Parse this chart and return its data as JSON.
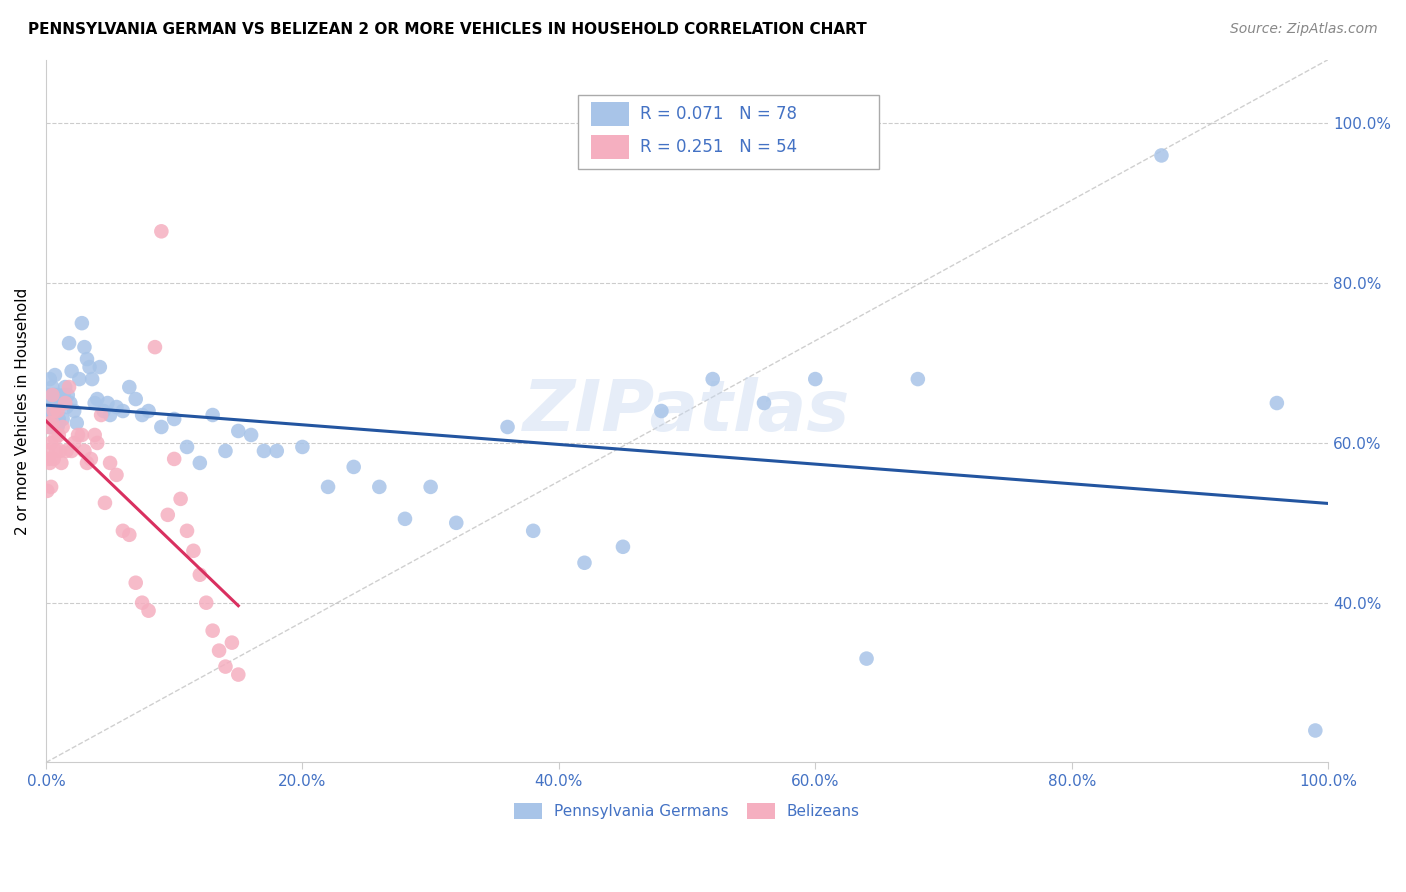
{
  "title": "PENNSYLVANIA GERMAN VS BELIZEAN 2 OR MORE VEHICLES IN HOUSEHOLD CORRELATION CHART",
  "source": "Source: ZipAtlas.com",
  "ylabel": "2 or more Vehicles in Household",
  "xlim": [
    0,
    1.0
  ],
  "ylim": [
    0.2,
    1.08
  ],
  "xtick_labels": [
    "0.0%",
    "20.0%",
    "40.0%",
    "60.0%",
    "80.0%",
    "100.0%"
  ],
  "xtick_vals": [
    0.0,
    0.2,
    0.4,
    0.6,
    0.8,
    1.0
  ],
  "ytick_labels": [
    "40.0%",
    "60.0%",
    "80.0%",
    "100.0%"
  ],
  "ytick_vals": [
    0.4,
    0.6,
    0.8,
    1.0
  ],
  "legend1_r": "0.071",
  "legend1_n": "78",
  "legend2_r": "0.251",
  "legend2_n": "54",
  "blue_color": "#a8c4e8",
  "pink_color": "#f5afc0",
  "line_blue": "#2355a0",
  "line_pink": "#d93060",
  "watermark": "ZIPatlas",
  "pa_german_x": [
    0.001,
    0.002,
    0.002,
    0.003,
    0.003,
    0.004,
    0.004,
    0.005,
    0.005,
    0.006,
    0.006,
    0.007,
    0.007,
    0.008,
    0.009,
    0.009,
    0.01,
    0.01,
    0.011,
    0.012,
    0.013,
    0.014,
    0.015,
    0.016,
    0.017,
    0.018,
    0.019,
    0.02,
    0.022,
    0.024,
    0.026,
    0.028,
    0.03,
    0.032,
    0.034,
    0.036,
    0.038,
    0.04,
    0.042,
    0.045,
    0.048,
    0.05,
    0.055,
    0.06,
    0.065,
    0.07,
    0.075,
    0.08,
    0.09,
    0.1,
    0.11,
    0.12,
    0.13,
    0.14,
    0.15,
    0.16,
    0.17,
    0.18,
    0.2,
    0.22,
    0.24,
    0.26,
    0.28,
    0.3,
    0.32,
    0.36,
    0.38,
    0.42,
    0.45,
    0.48,
    0.52,
    0.56,
    0.6,
    0.64,
    0.68,
    0.87,
    0.96,
    0.99
  ],
  "pa_german_y": [
    0.645,
    0.66,
    0.635,
    0.68,
    0.62,
    0.655,
    0.64,
    0.67,
    0.625,
    0.66,
    0.64,
    0.685,
    0.65,
    0.655,
    0.62,
    0.66,
    0.63,
    0.625,
    0.655,
    0.65,
    0.63,
    0.66,
    0.67,
    0.645,
    0.66,
    0.725,
    0.65,
    0.69,
    0.64,
    0.625,
    0.68,
    0.75,
    0.72,
    0.705,
    0.695,
    0.68,
    0.65,
    0.655,
    0.695,
    0.64,
    0.65,
    0.635,
    0.645,
    0.64,
    0.67,
    0.655,
    0.635,
    0.64,
    0.62,
    0.63,
    0.595,
    0.575,
    0.635,
    0.59,
    0.615,
    0.61,
    0.59,
    0.59,
    0.595,
    0.545,
    0.57,
    0.545,
    0.505,
    0.545,
    0.5,
    0.62,
    0.49,
    0.45,
    0.47,
    0.64,
    0.68,
    0.65,
    0.68,
    0.33,
    0.68,
    0.96,
    0.65,
    0.24
  ],
  "belizean_x": [
    0.001,
    0.001,
    0.002,
    0.002,
    0.003,
    0.003,
    0.004,
    0.004,
    0.005,
    0.005,
    0.006,
    0.006,
    0.007,
    0.008,
    0.009,
    0.01,
    0.011,
    0.012,
    0.013,
    0.015,
    0.016,
    0.018,
    0.02,
    0.022,
    0.025,
    0.028,
    0.03,
    0.032,
    0.035,
    0.038,
    0.04,
    0.043,
    0.046,
    0.05,
    0.055,
    0.06,
    0.065,
    0.07,
    0.075,
    0.08,
    0.085,
    0.09,
    0.095,
    0.1,
    0.105,
    0.11,
    0.115,
    0.12,
    0.125,
    0.13,
    0.135,
    0.14,
    0.145,
    0.15
  ],
  "belizean_y": [
    0.54,
    0.59,
    0.62,
    0.58,
    0.625,
    0.575,
    0.6,
    0.545,
    0.66,
    0.625,
    0.58,
    0.64,
    0.605,
    0.59,
    0.64,
    0.61,
    0.59,
    0.575,
    0.62,
    0.65,
    0.59,
    0.67,
    0.59,
    0.6,
    0.61,
    0.61,
    0.59,
    0.575,
    0.58,
    0.61,
    0.6,
    0.635,
    0.525,
    0.575,
    0.56,
    0.49,
    0.485,
    0.425,
    0.4,
    0.39,
    0.72,
    0.865,
    0.51,
    0.58,
    0.53,
    0.49,
    0.465,
    0.435,
    0.4,
    0.365,
    0.34,
    0.32,
    0.35,
    0.31
  ]
}
